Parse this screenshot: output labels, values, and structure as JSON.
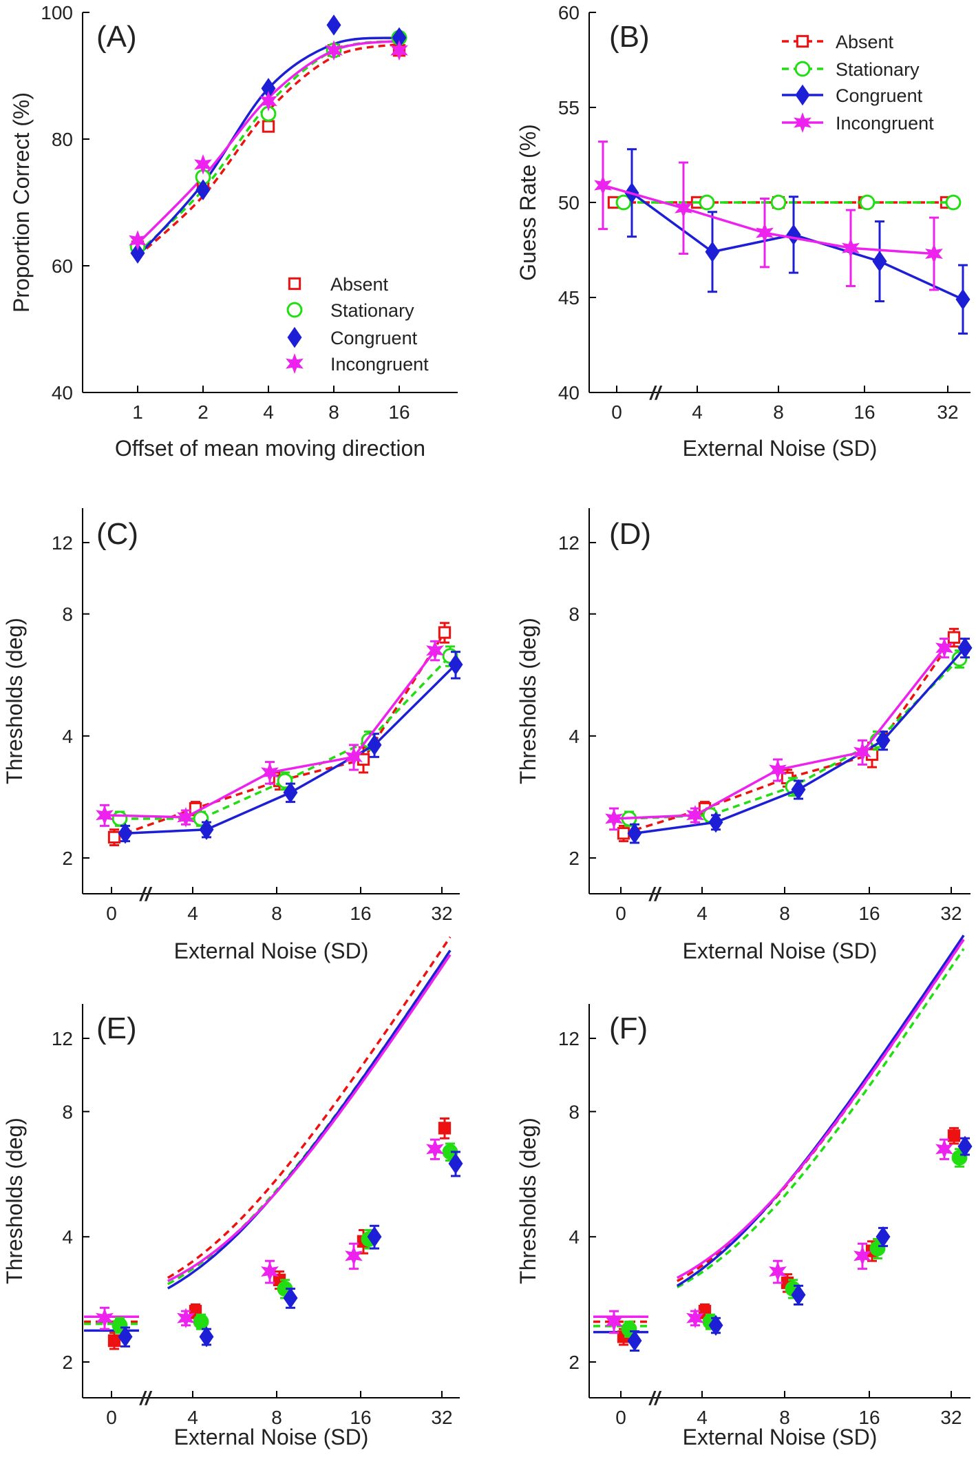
{
  "chart_data": [
    {
      "panel": "(A)",
      "type": "line",
      "xlabel": "Offset of mean moving direction",
      "ylabel": "Proportion Correct (%)",
      "x_ticks": [
        "1",
        "2",
        "4",
        "8",
        "16"
      ],
      "y_ticks": [
        "40",
        "60",
        "80",
        "100"
      ],
      "ylim": [
        40,
        100
      ],
      "legend": "bottom-right",
      "series": [
        {
          "name": "Absent",
          "values": [
            63,
            73,
            82,
            94,
            94
          ]
        },
        {
          "name": "Stationary",
          "values": [
            63,
            74,
            84,
            94,
            96
          ]
        },
        {
          "name": "Congruent",
          "values": [
            62,
            72,
            88,
            98,
            96
          ]
        },
        {
          "name": "Incongruent",
          "values": [
            64,
            76,
            86,
            94,
            94
          ]
        }
      ],
      "fits": [
        {
          "name": "Absent",
          "values": [
            61.5,
            71,
            84.5,
            93,
            95
          ]
        },
        {
          "name": "Stationary",
          "values": [
            62,
            72,
            85.5,
            94,
            95.5
          ]
        },
        {
          "name": "Congruent",
          "values": [
            61.5,
            73,
            88,
            95,
            96
          ]
        },
        {
          "name": "Incongruent",
          "values": [
            63.5,
            74,
            86.5,
            94,
            95.5
          ]
        }
      ]
    },
    {
      "panel": "(B)",
      "type": "line",
      "xlabel": "External Noise (SD)",
      "ylabel": "Guess Rate (%)",
      "x_ticks": [
        "0",
        "4",
        "8",
        "16",
        "32"
      ],
      "y_ticks": [
        "40",
        "45",
        "50",
        "55",
        "60"
      ],
      "ylim": [
        40,
        60
      ],
      "legend": "top-right",
      "series": [
        {
          "name": "Absent",
          "values": [
            50,
            50,
            50,
            50,
            50
          ]
        },
        {
          "name": "Stationary",
          "values": [
            50,
            50,
            50,
            50,
            50
          ]
        },
        {
          "name": "Congruent",
          "values": [
            50.5,
            47.4,
            48.3,
            46.9,
            44.9
          ],
          "errors": [
            2.3,
            2.1,
            2.0,
            2.1,
            1.8
          ]
        },
        {
          "name": "Incongruent",
          "values": [
            50.9,
            49.7,
            48.4,
            47.6,
            47.3
          ],
          "errors": [
            2.3,
            2.4,
            1.8,
            2.0,
            1.9
          ]
        }
      ]
    },
    {
      "panel": "(C)",
      "type": "line",
      "xlabel": "External Noise (SD)",
      "ylabel": "Thresholds (deg)",
      "x_ticks": [
        "0",
        "4",
        "8",
        "16",
        "32"
      ],
      "y_ticks": [
        "2",
        "4",
        "8",
        "12"
      ],
      "ylim": [
        1.8,
        14
      ],
      "series": [
        {
          "name": "Absent",
          "values": [
            2.25,
            2.65,
            3.1,
            3.5,
            7.2
          ],
          "errors": [
            0.1,
            0.1,
            0.15,
            0.25,
            0.4
          ]
        },
        {
          "name": "Stationary",
          "values": [
            2.5,
            2.5,
            3.1,
            3.9,
            6.3
          ],
          "errors": [
            0.1,
            0.1,
            0.15,
            0.2,
            0.35
          ]
        },
        {
          "name": "Congruent",
          "values": [
            2.3,
            2.35,
            2.9,
            3.8,
            6.0
          ],
          "errors": [
            0.1,
            0.1,
            0.15,
            0.25,
            0.45
          ]
        },
        {
          "name": "Incongruent",
          "values": [
            2.55,
            2.52,
            3.25,
            3.55,
            6.5
          ],
          "errors": [
            0.15,
            0.1,
            0.2,
            0.25,
            0.35
          ]
        }
      ]
    },
    {
      "panel": "(D)",
      "type": "line",
      "xlabel": "External Noise (SD)",
      "ylabel": "Thresholds (deg)",
      "x_ticks": [
        "0",
        "4",
        "8",
        "16",
        "32"
      ],
      "y_ticks": [
        "2",
        "4",
        "8",
        "12"
      ],
      "ylim": [
        1.8,
        14
      ],
      "series": [
        {
          "name": "Absent",
          "values": [
            2.3,
            2.65,
            3.15,
            3.6,
            7.0
          ],
          "errors": [
            0.1,
            0.1,
            0.15,
            0.25,
            0.35
          ]
        },
        {
          "name": "Stationary",
          "values": [
            2.5,
            2.55,
            3.0,
            3.9,
            6.2
          ],
          "errors": [
            0.1,
            0.1,
            0.15,
            0.2,
            0.3
          ]
        },
        {
          "name": "Congruent",
          "values": [
            2.3,
            2.45,
            2.95,
            3.9,
            6.6
          ],
          "errors": [
            0.12,
            0.1,
            0.15,
            0.2,
            0.35
          ]
        },
        {
          "name": "Incongruent",
          "values": [
            2.5,
            2.55,
            3.3,
            3.65,
            6.6
          ],
          "errors": [
            0.15,
            0.1,
            0.2,
            0.25,
            0.35
          ]
        }
      ]
    },
    {
      "panel": "(E)",
      "type": "scatter",
      "xlabel": "External Noise (SD)",
      "ylabel": "Thresholds (deg)",
      "x_ticks": [
        "0",
        "4",
        "8",
        "16",
        "32"
      ],
      "y_ticks": [
        "2",
        "4",
        "8",
        "12"
      ],
      "ylim": [
        1.8,
        14
      ],
      "series": [
        {
          "name": "Absent",
          "values": [
            2.25,
            2.65,
            3.15,
            3.9,
            7.3
          ],
          "errors": [
            0.1,
            0.1,
            0.15,
            0.25,
            0.4
          ]
        },
        {
          "name": "Stationary",
          "values": [
            2.45,
            2.5,
            3.0,
            3.95,
            6.4
          ],
          "errors": [
            0.1,
            0.1,
            0.15,
            0.2,
            0.3
          ]
        },
        {
          "name": "Congruent",
          "values": [
            2.3,
            2.3,
            2.85,
            4.0,
            6.0
          ],
          "errors": [
            0.12,
            0.1,
            0.15,
            0.25,
            0.4
          ]
        },
        {
          "name": "Incongruent",
          "values": [
            2.55,
            2.55,
            3.3,
            3.6,
            6.5
          ],
          "errors": [
            0.15,
            0.1,
            0.2,
            0.25,
            0.35
          ]
        }
      ],
      "fits": [
        {
          "name": "Absent",
          "n0": 2.5,
          "scale": 0.21,
          "exp": 0.95
        },
        {
          "name": "Stationary",
          "n0": 2.47,
          "scale": 0.195,
          "exp": 0.95
        },
        {
          "name": "Congruent",
          "n0": 2.38,
          "scale": 0.195,
          "exp": 0.95
        },
        {
          "name": "Incongruent",
          "n0": 2.57,
          "scale": 0.19,
          "exp": 0.95
        }
      ]
    },
    {
      "panel": "(F)",
      "type": "scatter",
      "xlabel": "External Noise (SD)",
      "ylabel": "Thresholds (deg)",
      "x_ticks": [
        "0",
        "4",
        "8",
        "16",
        "32"
      ],
      "y_ticks": [
        "2",
        "4",
        "8",
        "12"
      ],
      "ylim": [
        1.8,
        14
      ],
      "series": [
        {
          "name": "Absent",
          "values": [
            2.3,
            2.65,
            3.1,
            3.7,
            7.0
          ],
          "errors": [
            0.1,
            0.1,
            0.15,
            0.2,
            0.3
          ]
        },
        {
          "name": "Stationary",
          "values": [
            2.4,
            2.5,
            3.0,
            3.75,
            6.2
          ],
          "errors": [
            0.1,
            0.1,
            0.15,
            0.2,
            0.3
          ]
        },
        {
          "name": "Congruent",
          "values": [
            2.25,
            2.45,
            2.9,
            4.0,
            6.6
          ],
          "errors": [
            0.12,
            0.1,
            0.15,
            0.2,
            0.3
          ]
        },
        {
          "name": "Incongruent",
          "values": [
            2.5,
            2.55,
            3.3,
            3.6,
            6.5
          ],
          "errors": [
            0.15,
            0.1,
            0.2,
            0.25,
            0.35
          ]
        }
      ],
      "fits": [
        {
          "name": "Absent",
          "n0": 2.5,
          "scale": 0.2,
          "exp": 0.95
        },
        {
          "name": "Stationary",
          "n0": 2.44,
          "scale": 0.19,
          "exp": 0.95
        },
        {
          "name": "Congruent",
          "n0": 2.36,
          "scale": 0.205,
          "exp": 0.95
        },
        {
          "name": "Incongruent",
          "n0": 2.57,
          "scale": 0.2,
          "exp": 0.95
        }
      ]
    }
  ],
  "legend": {
    "absent": "Absent",
    "stationary": "Stationary",
    "congruent": "Congruent",
    "incongruent": "Incongruent"
  },
  "colors": {
    "Absent": "#ee1111",
    "Stationary": "#22dd11",
    "Congruent": "#1d1fd6",
    "Incongruent": "#ee22ee"
  },
  "break_mark": "//"
}
